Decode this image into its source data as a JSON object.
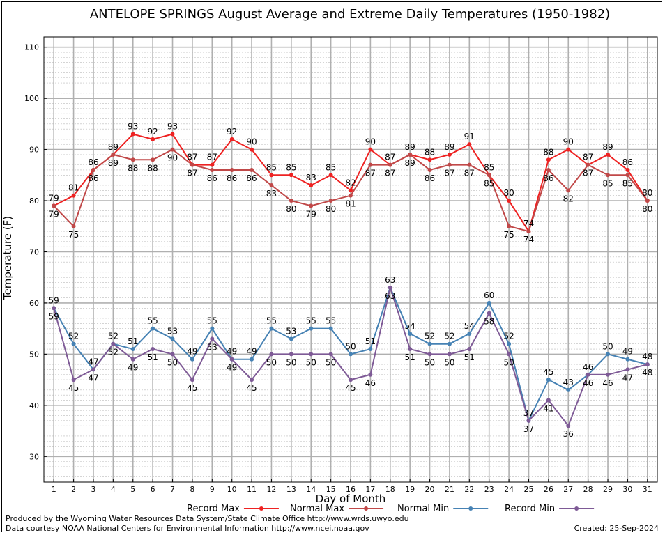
{
  "chart_data": {
    "type": "line",
    "title": "ANTELOPE SPRINGS August Average and Extreme Daily Temperatures (1950-1982)",
    "xlabel": "Day of Month",
    "ylabel": "Temperature (F)",
    "x": [
      1,
      2,
      3,
      4,
      5,
      6,
      7,
      8,
      9,
      10,
      11,
      12,
      13,
      14,
      15,
      16,
      17,
      18,
      19,
      20,
      21,
      22,
      23,
      24,
      25,
      26,
      27,
      28,
      29,
      30,
      31
    ],
    "xlim": [
      0.5,
      31.5
    ],
    "ylim": [
      25,
      112
    ],
    "yticks": [
      30,
      40,
      50,
      60,
      70,
      80,
      90,
      100,
      110
    ],
    "grid": true,
    "legend_position": "bottom",
    "series": [
      {
        "name": "Record Max",
        "color": "#ee2222",
        "values": [
          79,
          81,
          86,
          89,
          93,
          92,
          93,
          87,
          87,
          92,
          90,
          85,
          85,
          83,
          85,
          82,
          90,
          87,
          89,
          88,
          89,
          91,
          85,
          80,
          74,
          88,
          90,
          87,
          89,
          86,
          80
        ],
        "label_pos": "above"
      },
      {
        "name": "Normal Max",
        "color": "#c04848",
        "values": [
          79,
          75,
          86,
          89,
          88,
          88,
          90,
          87,
          86,
          86,
          86,
          83,
          80,
          79,
          80,
          81,
          87,
          87,
          89,
          86,
          87,
          87,
          85,
          75,
          74,
          86,
          82,
          87,
          85,
          85,
          80
        ],
        "label_pos": "below"
      },
      {
        "name": "Normal Min",
        "color": "#4682b4",
        "values": [
          59,
          52,
          47,
          52,
          51,
          55,
          53,
          49,
          55,
          49,
          49,
          55,
          53,
          55,
          55,
          50,
          51,
          63,
          54,
          52,
          52,
          54,
          60,
          52,
          37,
          45,
          43,
          46,
          50,
          49,
          48
        ],
        "label_pos": "above"
      },
      {
        "name": "Record Min",
        "color": "#7e5a96",
        "values": [
          59,
          45,
          47,
          52,
          49,
          51,
          50,
          45,
          53,
          49,
          45,
          50,
          50,
          50,
          50,
          45,
          46,
          63,
          51,
          50,
          50,
          51,
          58,
          50,
          37,
          41,
          36,
          46,
          46,
          47,
          48
        ],
        "label_pos": "below"
      }
    ]
  },
  "footer": {
    "credit_line1": "Produced by the Wyoming Water Resources Data System/State Climate Office http://www.wrds.uwyo.edu",
    "credit_line2": "Data courtesy NOAA National Centers for Environmental Information http://www.ncei.noaa.gov",
    "created": "Created:  25-Sep-2024"
  }
}
